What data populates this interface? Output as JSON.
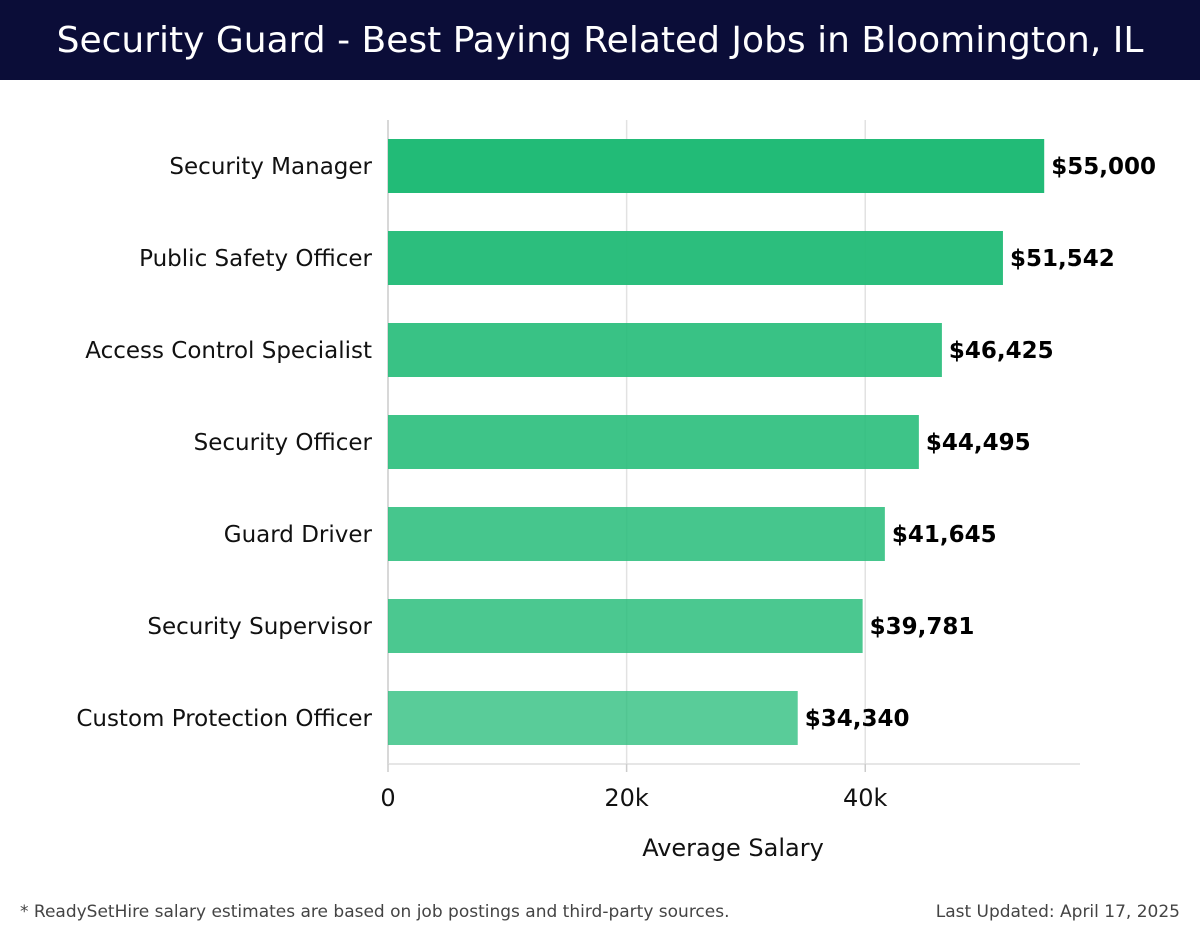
{
  "header": {
    "title": "Security Guard - Best Paying Related Jobs in Bloomington, IL"
  },
  "footer": {
    "note": "* ReadySetHire salary estimates are based on job postings and third-party sources.",
    "updated": "Last Updated: April 17, 2025"
  },
  "colors": {
    "header_bg": "#0b0d38",
    "bar": "#22bb77"
  },
  "chart_data": {
    "type": "bar",
    "orientation": "horizontal",
    "categories": [
      "Security Manager",
      "Public Safety Officer",
      "Access Control Specialist",
      "Security Officer",
      "Guard Driver",
      "Security Supervisor",
      "Custom Protection Officer"
    ],
    "values": [
      55000,
      51542,
      46425,
      44495,
      41645,
      39781,
      34340
    ],
    "value_labels": [
      "$55,000",
      "$51,542",
      "$46,425",
      "$44,495",
      "$41,645",
      "$39,781",
      "$34,340"
    ],
    "xlabel": "Average Salary",
    "ylabel": "",
    "xlim": [
      0,
      58000
    ],
    "xticks": [
      0,
      20000,
      40000
    ],
    "xtick_labels": [
      "0",
      "20k",
      "40k"
    ],
    "grid": "vertical"
  }
}
